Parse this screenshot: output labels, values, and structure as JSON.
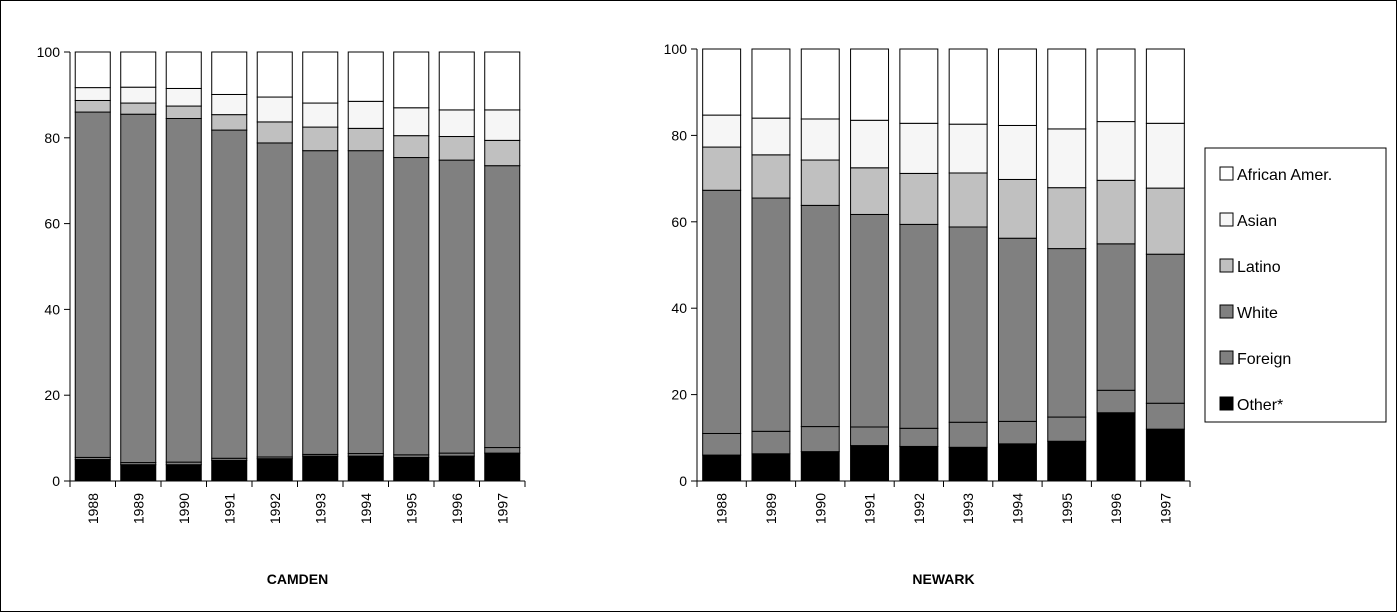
{
  "chart_data": [
    {
      "type": "bar",
      "stacked": true,
      "title": "CAMDEN",
      "categories": [
        "1988",
        "1989",
        "1990",
        "1991",
        "1992",
        "1993",
        "1994",
        "1995",
        "1996",
        "1997"
      ],
      "ylim": [
        0,
        100
      ],
      "yticks": [
        0,
        20,
        40,
        60,
        80,
        100
      ],
      "series": [
        {
          "name": "Other*",
          "color": "#000000",
          "values": [
            5,
            3.8,
            3.8,
            4.8,
            5.2,
            5.8,
            5.8,
            5.5,
            5.8,
            6.5
          ]
        },
        {
          "name": "Foreign",
          "color": "#808080",
          "values": [
            0.5,
            0.5,
            0.6,
            0.5,
            0.4,
            0.4,
            0.6,
            0.6,
            0.7,
            1.3
          ]
        },
        {
          "name": "White",
          "color": "#808080",
          "values": [
            80.5,
            81.2,
            80.1,
            76.5,
            73.2,
            70.8,
            70.6,
            69.3,
            68.3,
            65.7
          ]
        },
        {
          "name": "Latino",
          "color": "#c0c0c0",
          "values": [
            2.7,
            2.6,
            2.9,
            3.6,
            4.9,
            5.5,
            5.2,
            5.1,
            5.5,
            5.9
          ]
        },
        {
          "name": "Asian",
          "color": "#f6f6f6",
          "values": [
            3,
            3.7,
            4.1,
            4.7,
            5.8,
            5.6,
            6.3,
            6.5,
            6.2,
            7.1
          ]
        },
        {
          "name": "African Amer.",
          "color": "#ffffff",
          "values": [
            8.3,
            8.2,
            8.5,
            9.9,
            10.5,
            11.9,
            11.5,
            13,
            13.5,
            13.5
          ]
        }
      ]
    },
    {
      "type": "bar",
      "stacked": true,
      "title": "NEWARK",
      "categories": [
        "1988",
        "1989",
        "1990",
        "1991",
        "1992",
        "1993",
        "1994",
        "1995",
        "1996",
        "1997"
      ],
      "ylim": [
        0,
        100
      ],
      "yticks": [
        0,
        20,
        40,
        60,
        80,
        100
      ],
      "series": [
        {
          "name": "Other*",
          "color": "#000000",
          "values": [
            6,
            6.3,
            6.8,
            8.2,
            8,
            7.8,
            8.6,
            9.2,
            15.8,
            12
          ]
        },
        {
          "name": "Foreign",
          "color": "#808080",
          "values": [
            5,
            5.2,
            5.8,
            4.3,
            4.2,
            5.8,
            5.2,
            5.6,
            5.2,
            6
          ]
        },
        {
          "name": "White",
          "color": "#808080",
          "values": [
            56.3,
            54,
            51.2,
            49.2,
            47.2,
            45.2,
            42.4,
            39,
            33.9,
            34.5
          ]
        },
        {
          "name": "Latino",
          "color": "#c0c0c0",
          "values": [
            10,
            10,
            10.5,
            10.8,
            11.8,
            12.5,
            13.6,
            14.1,
            14.7,
            15.3
          ]
        },
        {
          "name": "Asian",
          "color": "#f6f6f6",
          "values": [
            7.4,
            8.5,
            9.5,
            11,
            11.6,
            11.3,
            12.5,
            13.6,
            13.6,
            15
          ]
        },
        {
          "name": "African Amer.",
          "color": "#ffffff",
          "values": [
            15.3,
            16,
            16.2,
            16.5,
            17.2,
            17.4,
            17.7,
            18.5,
            16.8,
            17.2
          ]
        }
      ]
    }
  ],
  "legend": {
    "placement": "right",
    "items": [
      {
        "name": "African Amer.",
        "color": "#ffffff"
      },
      {
        "name": "Asian",
        "color": "#f6f6f6"
      },
      {
        "name": "Latino",
        "color": "#c0c0c0"
      },
      {
        "name": "White",
        "color": "#808080"
      },
      {
        "name": "Foreign",
        "color": "#808080"
      },
      {
        "name": "Other*",
        "color": "#000000"
      }
    ]
  }
}
